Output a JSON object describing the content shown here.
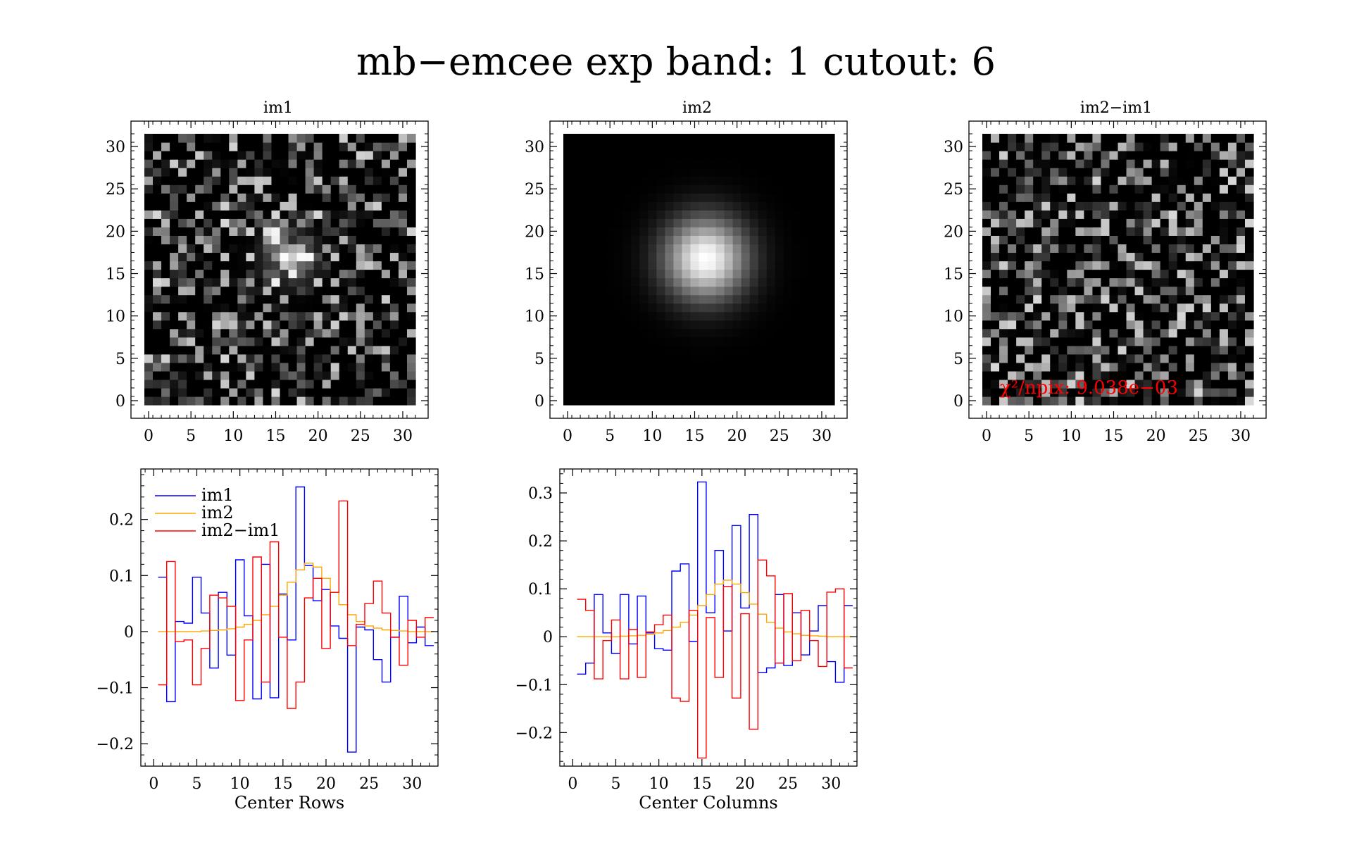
{
  "title": "mb−emcee exp band: 1 cutout: 6",
  "colors": {
    "im1": "#0000ff",
    "im2": "#ffa500",
    "diff": "#ff0000",
    "annotation": "#ff0000"
  },
  "chart_data": [
    {
      "type": "heatmap",
      "title": "im1",
      "xlim": [
        -0.5,
        31.5
      ],
      "ylim": [
        -0.5,
        31.5
      ],
      "xticks": [
        0,
        5,
        10,
        15,
        20,
        25,
        30
      ],
      "yticks": [
        0,
        5,
        10,
        15,
        20,
        25,
        30
      ],
      "xtick_labels": [
        "0",
        "5",
        "10",
        "15",
        "20",
        "25",
        "30"
      ],
      "ytick_labels": [
        "0",
        "5",
        "10",
        "15",
        "20",
        "25",
        "30"
      ],
      "grid": false,
      "colormap": "gray",
      "description": "32x32 noisy cutout with a faint source near (16,17)"
    },
    {
      "type": "heatmap",
      "title": "im2",
      "xlim": [
        -0.5,
        31.5
      ],
      "ylim": [
        -0.5,
        31.5
      ],
      "xticks": [
        0,
        5,
        10,
        15,
        20,
        25,
        30
      ],
      "yticks": [
        0,
        5,
        10,
        15,
        20,
        25,
        30
      ],
      "xtick_labels": [
        "0",
        "5",
        "10",
        "15",
        "20",
        "25",
        "30"
      ],
      "ytick_labels": [
        "0",
        "5",
        "10",
        "15",
        "20",
        "25",
        "30"
      ],
      "grid": false,
      "colormap": "gray",
      "description": "smooth model: single round Gaussian blob centred near (16,17)"
    },
    {
      "type": "heatmap",
      "title": "im2−im1",
      "xlim": [
        -0.5,
        31.5
      ],
      "ylim": [
        -0.5,
        31.5
      ],
      "xticks": [
        0,
        5,
        10,
        15,
        20,
        25,
        30
      ],
      "yticks": [
        0,
        5,
        10,
        15,
        20,
        25,
        30
      ],
      "xtick_labels": [
        "0",
        "5",
        "10",
        "15",
        "20",
        "25",
        "30"
      ],
      "ytick_labels": [
        "0",
        "5",
        "10",
        "15",
        "20",
        "25",
        "30"
      ],
      "grid": false,
      "colormap": "gray",
      "annotation": "χ²/npix: 9.038e−03"
    },
    {
      "type": "line",
      "xlabel": "Center Rows",
      "xlim": [
        -1.5,
        33
      ],
      "ylim": [
        -0.24,
        0.29
      ],
      "xticks": [
        0,
        5,
        10,
        15,
        20,
        25,
        30
      ],
      "yticks": [
        -0.2,
        -0.1,
        0,
        0.1,
        0.2
      ],
      "xtick_labels": [
        "0",
        "5",
        "10",
        "15",
        "20",
        "25",
        "30"
      ],
      "ytick_labels": [
        "−0.2",
        "−0.1",
        "0",
        "0.1",
        "0.2"
      ],
      "legend": "top-left",
      "x": [
        1,
        2,
        3,
        4,
        5,
        6,
        7,
        8,
        9,
        10,
        11,
        12,
        13,
        14,
        15,
        16,
        17,
        18,
        19,
        20,
        21,
        22,
        23,
        24,
        25,
        26,
        27,
        28,
        29,
        30,
        31,
        32
      ],
      "series": [
        {
          "name": "im1",
          "values": [
            0.097,
            -0.125,
            0.018,
            0.015,
            0.097,
            0.033,
            -0.065,
            0.07,
            -0.042,
            0.128,
            0.028,
            -0.12,
            0.12,
            -0.118,
            0.067,
            -0.015,
            0.258,
            0.118,
            0.055,
            0.075,
            0.01,
            -0.012,
            -0.215,
            0.008,
            0.003,
            -0.05,
            -0.09,
            -0.01,
            0.063,
            -0.02,
            0.008,
            -0.025
          ]
        },
        {
          "name": "im2",
          "values": [
            0.0,
            0.0,
            0.0,
            0.0,
            0.0,
            0.001,
            0.002,
            0.003,
            0.005,
            0.008,
            0.013,
            0.02,
            0.03,
            0.045,
            0.065,
            0.088,
            0.11,
            0.122,
            0.115,
            0.095,
            0.07,
            0.048,
            0.03,
            0.018,
            0.01,
            0.006,
            0.003,
            0.002,
            0.001,
            0.0,
            0.0,
            0.0
          ]
        },
        {
          "name": "im2−im1",
          "values": [
            -0.095,
            0.125,
            -0.018,
            -0.015,
            -0.095,
            -0.03,
            0.065,
            0.06,
            0.045,
            -0.123,
            -0.015,
            0.133,
            -0.09,
            0.16,
            -0.01,
            -0.137,
            -0.09,
            0.06,
            0.095,
            -0.03,
            0.07,
            0.233,
            -0.025,
            0.013,
            0.05,
            0.09,
            0.033,
            -0.01,
            -0.06,
            0.02,
            -0.01,
            0.025
          ]
        }
      ]
    },
    {
      "type": "line",
      "xlabel": "Center Columns",
      "xlim": [
        -1.5,
        33
      ],
      "ylim": [
        -0.27,
        0.35
      ],
      "xticks": [
        0,
        5,
        10,
        15,
        20,
        25,
        30
      ],
      "yticks": [
        -0.2,
        -0.1,
        0,
        0.1,
        0.2,
        0.3
      ],
      "xtick_labels": [
        "0",
        "5",
        "10",
        "15",
        "20",
        "25",
        "30"
      ],
      "ytick_labels": [
        "−0.2",
        "−0.1",
        "0",
        "0.1",
        "0.2",
        "0.3"
      ],
      "x": [
        1,
        2,
        3,
        4,
        5,
        6,
        7,
        8,
        9,
        10,
        11,
        12,
        13,
        14,
        15,
        16,
        17,
        18,
        19,
        20,
        21,
        22,
        23,
        24,
        25,
        26,
        27,
        28,
        29,
        30,
        31,
        32
      ],
      "series": [
        {
          "name": "im1",
          "values": [
            -0.078,
            -0.055,
            0.088,
            0.008,
            -0.035,
            0.088,
            -0.015,
            0.085,
            0.008,
            -0.025,
            -0.028,
            0.137,
            0.152,
            -0.01,
            0.323,
            0.05,
            0.18,
            0.012,
            0.232,
            0.06,
            0.255,
            -0.075,
            -0.065,
            0.088,
            -0.06,
            0.05,
            -0.038,
            0.012,
            0.065,
            -0.052,
            -0.095,
            0.065
          ]
        },
        {
          "name": "im2",
          "values": [
            0.0,
            0.0,
            0.0,
            0.0,
            0.0,
            0.001,
            0.002,
            0.003,
            0.005,
            0.008,
            0.013,
            0.02,
            0.03,
            0.045,
            0.065,
            0.088,
            0.11,
            0.118,
            0.11,
            0.092,
            0.068,
            0.047,
            0.03,
            0.018,
            0.01,
            0.006,
            0.003,
            0.002,
            0.001,
            0.0,
            0.0,
            0.0
          ]
        },
        {
          "name": "im2−im1",
          "values": [
            0.078,
            0.055,
            -0.088,
            -0.008,
            0.035,
            -0.088,
            0.015,
            -0.085,
            0.01,
            0.025,
            0.045,
            -0.128,
            -0.135,
            0.055,
            -0.253,
            0.04,
            -0.085,
            0.105,
            -0.128,
            0.048,
            -0.193,
            0.16,
            0.127,
            -0.055,
            0.09,
            -0.05,
            0.055,
            -0.008,
            -0.062,
            0.093,
            0.1,
            -0.065
          ]
        }
      ]
    }
  ]
}
